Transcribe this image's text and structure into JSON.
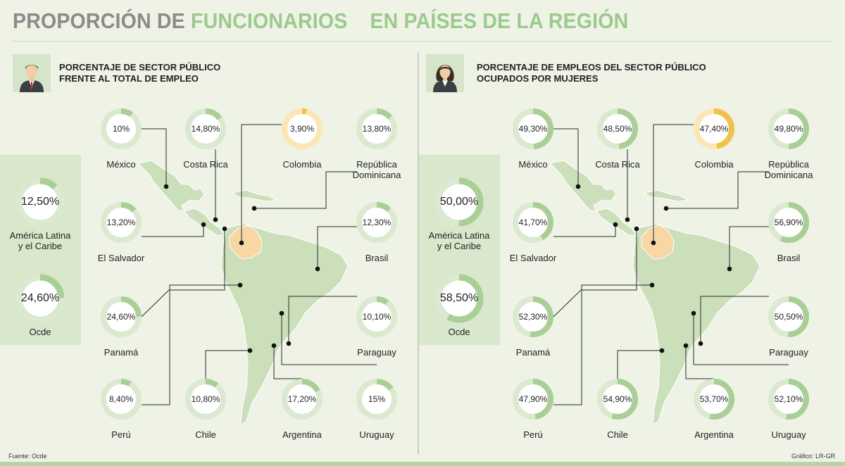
{
  "title": {
    "part1": "PROPORCIÓN DE",
    "part2": "FUNCIONARIOS",
    "part3": "EN PAÍSES DE LA REGIÓN"
  },
  "icons": {
    "left": "man-icon",
    "right": "woman-icon"
  },
  "colors": {
    "ring_fill": "#a9cf96",
    "ring_track": "#dbe9d0",
    "highlight_fill": "#f1c14e",
    "highlight_track": "#fbe6b4",
    "map_land": "#cadfba",
    "map_highlight": "#f7d7a3"
  },
  "footer": {
    "source": "Fuente: Ocde",
    "credit": "Gráfico: LR-GR"
  },
  "chart_data": [
    {
      "type": "donut",
      "panel": "left",
      "heading_line1": "PORCENTAJE DE SECTOR PÚBLICO",
      "heading_line2": "FRENTE AL TOTAL DE EMPLEO",
      "unit": "%",
      "highlight": "Colombia",
      "aggregates": [
        {
          "label_line1": "América Latina",
          "label_line2": "y el Caribe",
          "value": 12.5,
          "display": "12,50%"
        },
        {
          "label_line1": "Ocde",
          "label_line2": "",
          "value": 24.6,
          "display": "24,60%"
        }
      ],
      "countries": [
        {
          "label_line1": "México",
          "label_line2": "",
          "value": 10,
          "display": "10%"
        },
        {
          "label_line1": "Costa Rica",
          "label_line2": "",
          "value": 14.8,
          "display": "14,80%"
        },
        {
          "label_line1": "Colombia",
          "label_line2": "",
          "value": 3.9,
          "display": "3,90%"
        },
        {
          "label_line1": "República",
          "label_line2": "Dominicana",
          "value": 13.8,
          "display": "13,80%"
        },
        {
          "label_line1": "El Salvador",
          "label_line2": "",
          "value": 13.2,
          "display": "13,20%"
        },
        {
          "label_line1": "Brasil",
          "label_line2": "",
          "value": 12.3,
          "display": "12,30%"
        },
        {
          "label_line1": "Panamá",
          "label_line2": "",
          "value": 24.6,
          "display": "24,60%"
        },
        {
          "label_line1": "Paraguay",
          "label_line2": "",
          "value": 10.1,
          "display": "10,10%"
        },
        {
          "label_line1": "Perú",
          "label_line2": "",
          "value": 8.4,
          "display": "8,40%"
        },
        {
          "label_line1": "Chile",
          "label_line2": "",
          "value": 10.8,
          "display": "10,80%"
        },
        {
          "label_line1": "Argentina",
          "label_line2": "",
          "value": 17.2,
          "display": "17,20%"
        },
        {
          "label_line1": "Uruguay",
          "label_line2": "",
          "value": 15,
          "display": "15%"
        }
      ]
    },
    {
      "type": "donut",
      "panel": "right",
      "heading_line1": "PORCENTAJE DE EMPLEOS DEL SECTOR PÚBLICO",
      "heading_line2": "OCUPADOS POR MUJERES",
      "unit": "%",
      "highlight": "Colombia",
      "aggregates": [
        {
          "label_line1": "América Latina",
          "label_line2": "y el Caribe",
          "value": 50.0,
          "display": "50,00%"
        },
        {
          "label_line1": "Ocde",
          "label_line2": "",
          "value": 58.5,
          "display": "58,50%"
        }
      ],
      "countries": [
        {
          "label_line1": "México",
          "label_line2": "",
          "value": 49.3,
          "display": "49,30%"
        },
        {
          "label_line1": "Costa Rica",
          "label_line2": "",
          "value": 48.5,
          "display": "48,50%"
        },
        {
          "label_line1": "Colombia",
          "label_line2": "",
          "value": 47.4,
          "display": "47,40%"
        },
        {
          "label_line1": "República",
          "label_line2": "Dominicana",
          "value": 49.8,
          "display": "49,80%"
        },
        {
          "label_line1": "El Salvador",
          "label_line2": "",
          "value": 41.7,
          "display": "41,70%"
        },
        {
          "label_line1": "Brasil",
          "label_line2": "",
          "value": 56.9,
          "display": "56,90%"
        },
        {
          "label_line1": "Panamá",
          "label_line2": "",
          "value": 52.3,
          "display": "52,30%"
        },
        {
          "label_line1": "Paraguay",
          "label_line2": "",
          "value": 50.5,
          "display": "50,50%"
        },
        {
          "label_line1": "Perú",
          "label_line2": "",
          "value": 47.9,
          "display": "47,90%"
        },
        {
          "label_line1": "Chile",
          "label_line2": "",
          "value": 54.9,
          "display": "54,90%"
        },
        {
          "label_line1": "Argentina",
          "label_line2": "",
          "value": 53.7,
          "display": "53,70%"
        },
        {
          "label_line1": "Uruguay",
          "label_line2": "",
          "value": 52.1,
          "display": "52,10%"
        }
      ]
    }
  ]
}
